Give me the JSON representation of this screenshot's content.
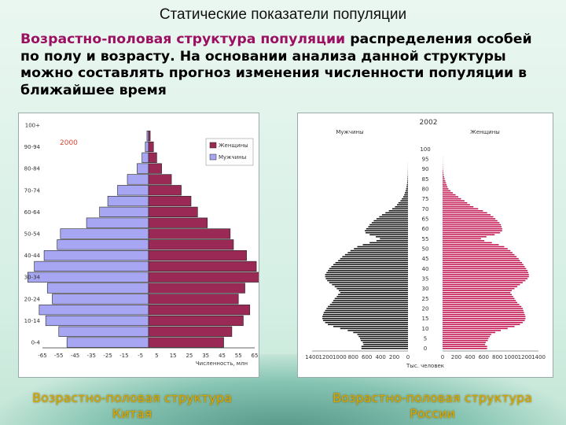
{
  "slide": {
    "title": "Статические показатели популяции",
    "lead_highlight": "Возрастно-половая структура популяции",
    "lead_rest": " распределения особей по полу и возрасту. На основании анализа данной структуры можно составлять прогноз изменения численности популяции в ближайшее время"
  },
  "captions": {
    "china": "Возрастно-половая структура Китая",
    "russia": "Возрастно-половая структура России"
  },
  "colors": {
    "male": "#a6a6f2",
    "female": "#9a2a55",
    "highlight": "#9b1060",
    "caption": "#d8a600"
  },
  "chart_data": [
    {
      "type": "bar",
      "orientation": "horizontal-population-pyramid",
      "year_label": "2000",
      "legend": [
        "Женщины",
        "Мужчины"
      ],
      "legend_position": "top-right",
      "y_tick_labels": [
        "100+",
        "90-94",
        "80-84",
        "70-74",
        "60-64",
        "50-54",
        "40-44",
        "30-34",
        "20-24",
        "10-14",
        "0-4"
      ],
      "x_tick_labels": [
        "-65",
        "-55",
        "-45",
        "-35",
        "-25",
        "-15",
        "-5",
        "5",
        "15",
        "25",
        "35",
        "45",
        "55",
        "65"
      ],
      "x_axis_note": "Численность, млн",
      "xlim": [
        -65,
        65
      ],
      "categories": [
        "0-4",
        "5-9",
        "10-14",
        "15-19",
        "20-24",
        "25-29",
        "30-34",
        "35-39",
        "40-44",
        "45-49",
        "50-54",
        "55-59",
        "60-64",
        "65-69",
        "70-74",
        "75-79",
        "80-84",
        "85-89",
        "90-94",
        "95-99",
        "100+"
      ],
      "series": [
        {
          "name": "Мужчины",
          "values": [
            -50,
            -55,
            -63,
            -67,
            -59,
            -62,
            -74,
            -70,
            -64,
            -56,
            -54,
            -38,
            -30,
            -25,
            -19,
            -13,
            -7,
            -4,
            -2,
            -1,
            0
          ]
        },
        {
          "name": "Женщины",
          "values": [
            46,
            51,
            58,
            62,
            55,
            59,
            70,
            66,
            60,
            52,
            50,
            36,
            30,
            26,
            20,
            14,
            8,
            5,
            3,
            1,
            0
          ]
        }
      ]
    },
    {
      "type": "bar",
      "orientation": "horizontal-population-pyramid",
      "year_label": "2002",
      "left_label": "Мужчины",
      "right_label": "Женщины",
      "y_tick_labels": [
        "0",
        "5",
        "10",
        "15",
        "20",
        "25",
        "30",
        "35",
        "40",
        "45",
        "50",
        "55",
        "60",
        "65",
        "70",
        "75",
        "80",
        "85",
        "90",
        "95",
        "100"
      ],
      "x_tick_labels": [
        "1400",
        "1200",
        "1000",
        "800",
        "600",
        "400",
        "200",
        "0",
        "0",
        "200",
        "400",
        "600",
        "800",
        "1000",
        "1200",
        "1400"
      ],
      "x_axis_note": "Тыс. человек",
      "xlim": [
        -1400,
        1400
      ],
      "x_ages": [
        0,
        1,
        2,
        3,
        4,
        5,
        6,
        7,
        8,
        9,
        10,
        11,
        12,
        13,
        14,
        15,
        16,
        17,
        18,
        19,
        20,
        21,
        22,
        23,
        24,
        25,
        26,
        27,
        28,
        29,
        30,
        31,
        32,
        33,
        34,
        35,
        36,
        37,
        38,
        39,
        40,
        41,
        42,
        43,
        44,
        45,
        46,
        47,
        48,
        49,
        50,
        51,
        52,
        53,
        54,
        55,
        56,
        57,
        58,
        59,
        60,
        61,
        62,
        63,
        64,
        65,
        66,
        67,
        68,
        69,
        70,
        71,
        72,
        73,
        74,
        75,
        76,
        77,
        78,
        79,
        80,
        81,
        82,
        83,
        84,
        85,
        86,
        87,
        88,
        89,
        90,
        91,
        92,
        93,
        94,
        95,
        96,
        97,
        98,
        99,
        100
      ],
      "series": [
        {
          "name": "Мужчины",
          "values": [
            680,
            680,
            650,
            660,
            690,
            700,
            720,
            740,
            800,
            880,
            990,
            1090,
            1170,
            1210,
            1240,
            1250,
            1250,
            1240,
            1230,
            1210,
            1190,
            1170,
            1140,
            1110,
            1090,
            1070,
            1040,
            1020,
            990,
            1010,
            1040,
            1070,
            1110,
            1150,
            1180,
            1200,
            1210,
            1210,
            1190,
            1170,
            1150,
            1120,
            1090,
            1060,
            1020,
            990,
            960,
            920,
            880,
            840,
            790,
            740,
            660,
            560,
            460,
            410,
            470,
            560,
            620,
            630,
            610,
            580,
            560,
            530,
            500,
            460,
            420,
            380,
            330,
            280,
            230,
            190,
            160,
            140,
            110,
            90,
            70,
            55,
            45,
            35,
            28,
            22,
            17,
            13,
            10,
            8,
            6,
            4,
            3,
            2,
            2,
            1,
            1,
            1,
            0,
            0,
            0,
            0,
            0,
            0,
            0
          ]
        },
        {
          "name": "Женщины",
          "values": [
            650,
            650,
            620,
            630,
            660,
            670,
            690,
            710,
            770,
            850,
            950,
            1050,
            1130,
            1170,
            1200,
            1210,
            1210,
            1200,
            1190,
            1180,
            1170,
            1150,
            1120,
            1090,
            1070,
            1050,
            1030,
            1010,
            990,
            1010,
            1050,
            1090,
            1130,
            1170,
            1210,
            1240,
            1260,
            1260,
            1250,
            1240,
            1220,
            1200,
            1180,
            1160,
            1130,
            1110,
            1080,
            1050,
            1020,
            990,
            950,
            900,
            820,
            720,
            610,
            560,
            640,
            760,
            840,
            870,
            870,
            860,
            850,
            830,
            800,
            770,
            740,
            700,
            650,
            590,
            520,
            450,
            400,
            360,
            320,
            270,
            230,
            190,
            150,
            115,
            85,
            70,
            60,
            50,
            40,
            30,
            22,
            16,
            11,
            8,
            5,
            4,
            3,
            2,
            1,
            1,
            1,
            0,
            0,
            0,
            0
          ]
        }
      ]
    }
  ]
}
